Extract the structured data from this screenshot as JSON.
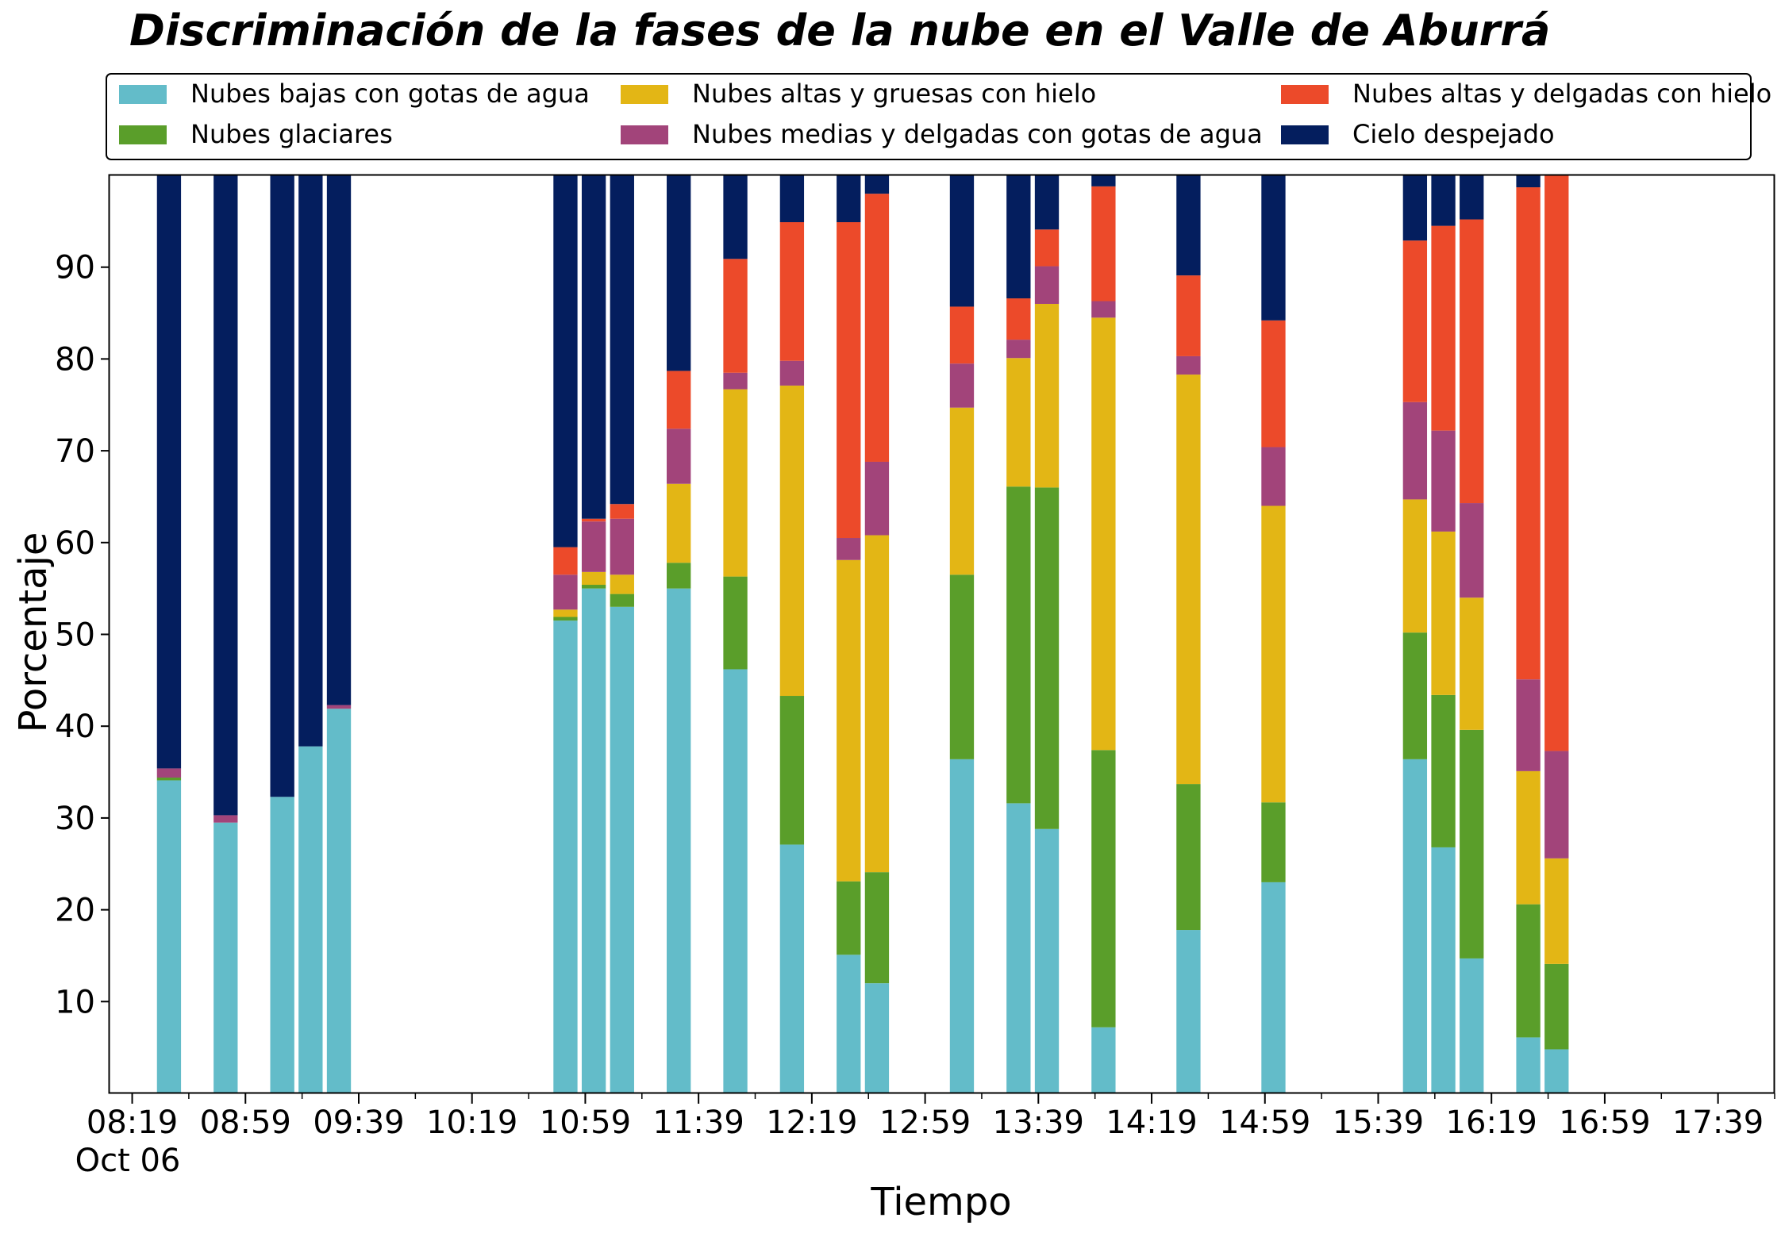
{
  "chart_data": {
    "type": "bar",
    "stacked": true,
    "title": "Discriminación de la fases de la nube en el Valle de Aburrá",
    "xlabel": "Tiempo",
    "ylabel": "Porcentaje",
    "ylim": [
      0,
      100
    ],
    "y_ticks": [
      10,
      20,
      30,
      40,
      50,
      60,
      70,
      80,
      90
    ],
    "x_range": [
      "08:11",
      "17:59"
    ],
    "x_ticks": [
      "08:19",
      "08:59",
      "09:39",
      "10:19",
      "10:59",
      "11:39",
      "12:19",
      "12:59",
      "13:39",
      "14:19",
      "14:59",
      "15:39",
      "16:19",
      "16:59",
      "17:39"
    ],
    "x_date_label": "Oct 06",
    "legend_position": "top",
    "grid": false,
    "bar_width_minutes": 8.5,
    "x": [
      "08:32",
      "08:52",
      "09:12",
      "09:22",
      "09:32",
      "10:52",
      "11:02",
      "11:12",
      "11:32",
      "11:52",
      "12:12",
      "12:32",
      "12:42",
      "13:12",
      "13:32",
      "13:42",
      "14:02",
      "14:32",
      "15:02",
      "15:52",
      "16:02",
      "16:12",
      "16:32",
      "16:42"
    ],
    "series": [
      {
        "name": "Nubes bajas con gotas de agua",
        "color": "#63bcc9",
        "values": [
          34.1,
          29.5,
          32.3,
          37.8,
          41.9,
          51.5,
          55.0,
          53.0,
          55.0,
          46.2,
          27.1,
          15.1,
          12.0,
          36.4,
          31.6,
          28.8,
          7.2,
          17.8,
          23.0,
          36.4,
          26.8,
          14.7,
          6.1,
          4.8
        ]
      },
      {
        "name": "Nubes glaciares",
        "color": "#5a9e2a",
        "values": [
          0.3,
          0,
          0,
          0,
          0,
          0.4,
          0.4,
          1.4,
          2.8,
          10.1,
          16.2,
          8.0,
          12.1,
          20.1,
          34.5,
          37.2,
          30.2,
          15.9,
          8.7,
          13.8,
          16.6,
          24.9,
          14.5,
          9.3
        ]
      },
      {
        "name": "Nubes altas y gruesas con hielo",
        "color": "#e3b615",
        "values": [
          0,
          0,
          0,
          0,
          0,
          0.8,
          1.4,
          2.1,
          8.6,
          20.4,
          33.8,
          35.0,
          36.7,
          18.2,
          14.0,
          20.0,
          47.1,
          44.6,
          32.3,
          14.5,
          17.8,
          14.4,
          14.5,
          11.5
        ]
      },
      {
        "name": "Nubes medias y delgadas con gotas de agua",
        "color": "#a2447a",
        "values": [
          1.0,
          0.8,
          0,
          0,
          0.4,
          3.8,
          5.5,
          6.1,
          6.0,
          1.8,
          2.7,
          2.4,
          8.0,
          4.8,
          2.0,
          4.1,
          1.8,
          2.0,
          6.4,
          10.6,
          11.0,
          10.3,
          10.0,
          11.7
        ]
      },
      {
        "name": "Nubes altas y delgadas con hielo",
        "color": "#ec4a2a",
        "values": [
          0,
          0,
          0,
          0,
          0,
          3.0,
          0.3,
          1.6,
          6.3,
          12.4,
          15.1,
          34.4,
          29.2,
          6.2,
          4.5,
          4.0,
          12.5,
          8.8,
          13.8,
          17.6,
          22.3,
          30.9,
          53.6,
          62.7
        ]
      },
      {
        "name": "Cielo despejado",
        "color": "#041e5e",
        "values": [
          64.6,
          69.7,
          67.7,
          62.2,
          57.7,
          40.5,
          37.4,
          35.8,
          21.3,
          9.1,
          5.1,
          5.1,
          2.0,
          14.3,
          13.4,
          5.9,
          1.2,
          10.9,
          15.8,
          7.1,
          5.5,
          4.8,
          1.3,
          0
        ]
      }
    ]
  }
}
